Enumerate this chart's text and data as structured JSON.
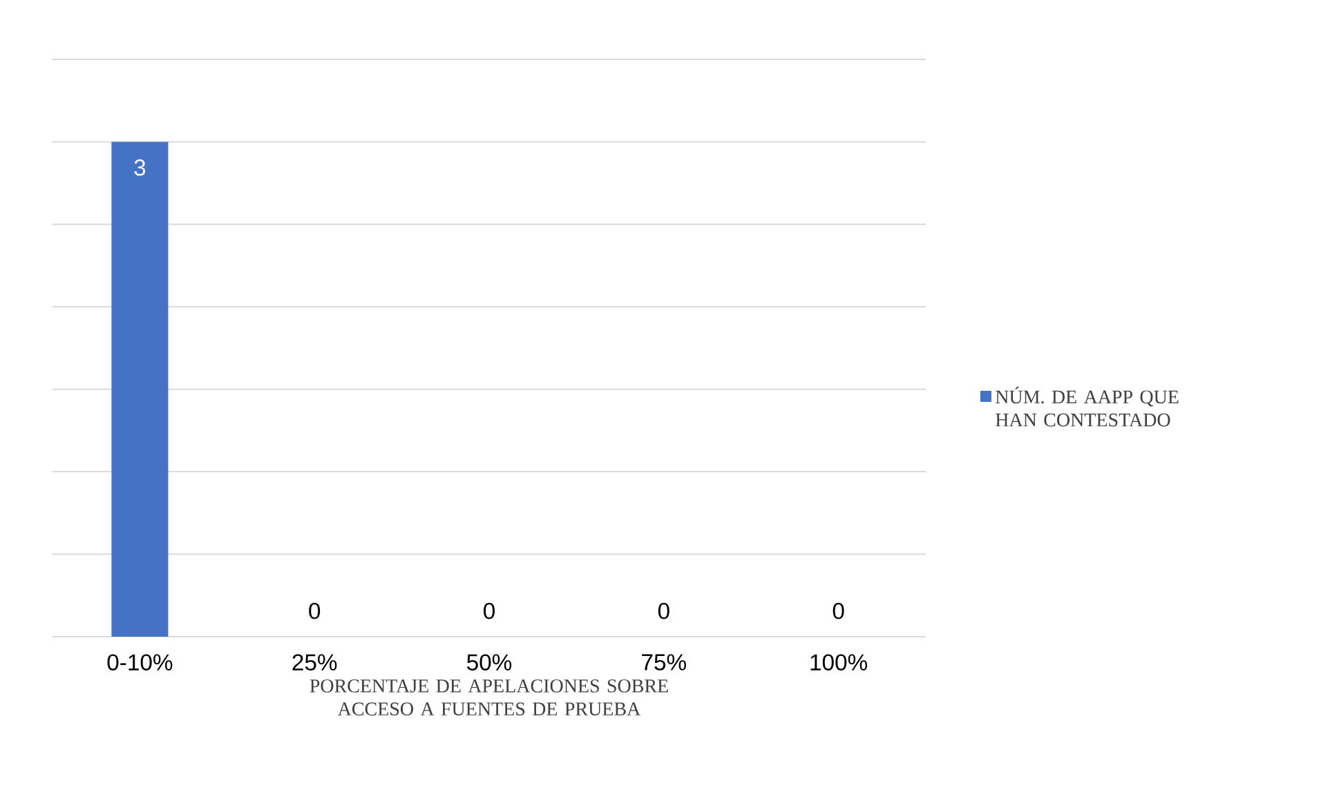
{
  "chart_data": {
    "type": "bar",
    "xlabel": "PORCENTAJE DE APELACIONES SOBRE ACCESO A FUENTES DE PRUEBA",
    "categories": [
      "0-10%",
      "25%",
      "50%",
      "75%",
      "100%"
    ],
    "series": [
      {
        "name": "NÚM. DE AAPP QUE HAN CONTESTADO",
        "color": "#4472c4",
        "values": [
          3,
          0,
          0,
          0,
          0
        ]
      }
    ],
    "ylim": [
      0,
      3.5
    ],
    "yticks": [
      {
        "value": 0,
        "label": null
      },
      {
        "value": 0.5,
        "label": null
      },
      {
        "value": 1,
        "label": null
      },
      {
        "value": 1.5,
        "label": null
      },
      {
        "value": 2,
        "label": null
      },
      {
        "value": 2.5,
        "label": null
      },
      {
        "value": 3,
        "label": null
      },
      {
        "value": 3.5,
        "label": null
      }
    ],
    "tick_labels": "x",
    "grid": "y",
    "legend": "right",
    "data_labels": true
  }
}
